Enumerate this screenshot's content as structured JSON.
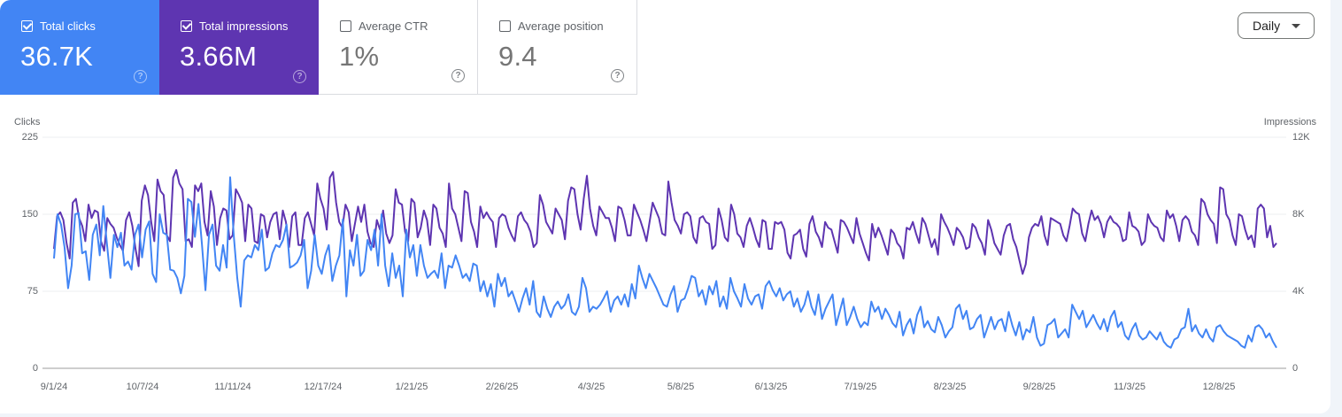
{
  "metrics": [
    {
      "label": "Total clicks",
      "value": "36.7K",
      "checked": true,
      "color": "#4285f4",
      "help_icon": "help-circle-icon"
    },
    {
      "label": "Total impressions",
      "value": "3.66M",
      "checked": true,
      "color": "#5e35b1",
      "help_icon": "help-circle-icon"
    },
    {
      "label": "Average CTR",
      "value": "1%",
      "checked": false,
      "help_icon": "help-circle-icon"
    },
    {
      "label": "Average position",
      "value": "9.4",
      "checked": false,
      "help_icon": "help-circle-icon"
    }
  ],
  "granularity": {
    "selected": "Daily",
    "icon": "caret-down-icon"
  },
  "chart_data": {
    "type": "line",
    "title": "",
    "xlabel": "",
    "ylabel": "Clicks",
    "ylabel_right": "Impressions",
    "ylim": [
      0,
      225
    ],
    "ylim_right": [
      0,
      12000
    ],
    "y_ticks": [
      "0",
      "75",
      "150",
      "225"
    ],
    "y_ticks_right": [
      "0",
      "4K",
      "8K",
      "12K"
    ],
    "grid": true,
    "legend": "metric cards above chart",
    "categories": [
      "9/1/24",
      "10/7/24",
      "11/11/24",
      "12/17/24",
      "1/21/25",
      "2/26/25",
      "4/3/25",
      "5/8/25",
      "6/13/25",
      "7/19/25",
      "8/23/25",
      "9/28/25",
      "11/3/25",
      "12/8/25"
    ],
    "series": [
      {
        "name": "Clicks",
        "axis": "left",
        "color": "#4285f4",
        "values": [
          107,
          150,
          140,
          118,
          78,
          100,
          150,
          151,
          112,
          114,
          86,
          130,
          140,
          110,
          158,
          122,
          88,
          130,
          118,
          132,
          100,
          104,
          96,
          130,
          140,
          108,
          135,
          143,
          92,
          84,
          150,
          132,
          130,
          96,
          95,
          88,
          73,
          90,
          165,
          162,
          128,
          160,
          120,
          76,
          130,
          140,
          100,
          95,
          120,
          98,
          186,
          130,
          88,
          60,
          105,
          110,
          108,
          120,
          115,
          135,
          95,
          98,
          112,
          120,
          118,
          125,
          140,
          98,
          100,
          103,
          110,
          125,
          78,
          95,
          130,
          100,
          92,
          110,
          120,
          85,
          100,
          110,
          145,
          70,
          115,
          100,
          130,
          90,
          95,
          125,
          115,
          135,
          100,
          150,
          100,
          80,
          112,
          88,
          100,
          70,
          135,
          108,
          120,
          90,
          120,
          100,
          88,
          92,
          95,
          88,
          112,
          78,
          100,
          98,
          110,
          100,
          88,
          92,
          85,
          102,
          100,
          75,
          85,
          70,
          82,
          60,
          92,
          80,
          88,
          70,
          75,
          65,
          55,
          68,
          78,
          62,
          85,
          55,
          50,
          70,
          58,
          50,
          60,
          65,
          58,
          62,
          72,
          55,
          52,
          60,
          88,
          78,
          55,
          60,
          58,
          62,
          68,
          75,
          55,
          66,
          70,
          62,
          72,
          60,
          82,
          68,
          100,
          88,
          78,
          92,
          85,
          78,
          70,
          62,
          60,
          72,
          80,
          55,
          66,
          68,
          78,
          90,
          88,
          70,
          76,
          62,
          80,
          72,
          85,
          60,
          70,
          58,
          88,
          75,
          68,
          60,
          82,
          68,
          62,
          70,
          72,
          58,
          80,
          85,
          76,
          70,
          78,
          66,
          72,
          75,
          60,
          68,
          55,
          62,
          75,
          60,
          52,
          72,
          48,
          58,
          65,
          72,
          42,
          55,
          68,
          42,
          50,
          60,
          48,
          40,
          45,
          42,
          65,
          55,
          60,
          48,
          58,
          52,
          44,
          40,
          55,
          32,
          42,
          48,
          34,
          52,
          60,
          40,
          46,
          38,
          35,
          50,
          42,
          30,
          36,
          40,
          58,
          62,
          48,
          56,
          38,
          40,
          48,
          52,
          30,
          40,
          50,
          38,
          46,
          48,
          36,
          55,
          42,
          32,
          45,
          28,
          38,
          35,
          50,
          30,
          22,
          24,
          42,
          44,
          48,
          30,
          34,
          38,
          30,
          62,
          55,
          48,
          56,
          40,
          46,
          52,
          44,
          38,
          48,
          36,
          50,
          56,
          40,
          45,
          32,
          28,
          38,
          44,
          32,
          28,
          30,
          36,
          32,
          28,
          35,
          26,
          22,
          20,
          28,
          30,
          38,
          40,
          58,
          36,
          42,
          34,
          30,
          38,
          30,
          26,
          40,
          42,
          36,
          32,
          30,
          28,
          26,
          22,
          20,
          32,
          26,
          40,
          42,
          38,
          30,
          34,
          26,
          20
        ]
      },
      {
        "name": "Impressions",
        "axis": "right",
        "color": "#5e35b1",
        "values": [
          6200,
          7900,
          8100,
          7700,
          6500,
          5700,
          8600,
          8800,
          7800,
          7400,
          6600,
          8500,
          7800,
          8200,
          8100,
          6600,
          6100,
          7800,
          7500,
          7300,
          6800,
          6400,
          6100,
          7700,
          8100,
          7400,
          6200,
          5300,
          8700,
          9500,
          9000,
          7600,
          6600,
          9800,
          9200,
          9000,
          6900,
          6600,
          9900,
          10300,
          9600,
          9300,
          6600,
          6700,
          6300,
          9500,
          9200,
          9600,
          7600,
          6900,
          9200,
          8400,
          6400,
          7800,
          8300,
          8200,
          6700,
          6900,
          9300,
          9000,
          8600,
          6600,
          8500,
          8300,
          6600,
          6500,
          8000,
          7900,
          6800,
          7600,
          8000,
          8100,
          6700,
          8200,
          7600,
          6300,
          7900,
          8100,
          6400,
          6400,
          7800,
          8100,
          7500,
          6900,
          9600,
          8800,
          8300,
          7200,
          9900,
          10200,
          8600,
          7600,
          7300,
          8500,
          8100,
          6600,
          7500,
          8400,
          7600,
          8500,
          7100,
          6500,
          6300,
          7700,
          7200,
          8200,
          7000,
          6500,
          6900,
          9300,
          8600,
          8500,
          7100,
          6600,
          8800,
          8600,
          6800,
          7300,
          8200,
          7700,
          6400,
          8500,
          8300,
          7300,
          7000,
          6300,
          9600,
          8300,
          8000,
          7300,
          6600,
          9200,
          9100,
          7600,
          7100,
          6300,
          8400,
          7800,
          8100,
          7800,
          7600,
          6300,
          7800,
          8000,
          7900,
          7300,
          6900,
          6600,
          7900,
          8100,
          7700,
          7500,
          7100,
          6300,
          6500,
          9000,
          8500,
          7600,
          7300,
          7000,
          8300,
          8000,
          7700,
          6700,
          8700,
          9400,
          9300,
          8000,
          7200,
          8800,
          10000,
          8300,
          7400,
          6900,
          8400,
          8100,
          7800,
          7800,
          7300,
          6600,
          8400,
          8300,
          7700,
          6900,
          6900,
          8500,
          8100,
          7700,
          7200,
          6600,
          7600,
          8600,
          8200,
          7800,
          7000,
          6900,
          9700,
          8600,
          7700,
          7400,
          7000,
          8000,
          8100,
          7900,
          6800,
          6500,
          7800,
          7900,
          7600,
          7500,
          6200,
          6400,
          8300,
          7700,
          6800,
          6600,
          8500,
          8000,
          7000,
          6800,
          6300,
          7400,
          7800,
          7300,
          6700,
          6300,
          7700,
          7600,
          6200,
          6200,
          7600,
          7500,
          7600,
          7200,
          6000,
          5700,
          6900,
          7000,
          7200,
          6200,
          5800,
          7500,
          7900,
          7100,
          6800,
          6300,
          7600,
          7300,
          7200,
          6600,
          6000,
          7700,
          7600,
          7300,
          6900,
          6500,
          7800,
          7000,
          6500,
          6000,
          5600,
          7500,
          6800,
          7300,
          6900,
          6400,
          5900,
          7200,
          7000,
          6500,
          6300,
          5700,
          7300,
          7200,
          7600,
          7000,
          6500,
          7800,
          7500,
          6900,
          6300,
          6700,
          5900,
          8000,
          7600,
          7300,
          6900,
          6400,
          7300,
          7100,
          6800,
          6200,
          6300,
          7500,
          7300,
          6800,
          6500,
          5900,
          7700,
          7200,
          6500,
          6200,
          5900,
          6900,
          7400,
          7500,
          6700,
          6300,
          5600,
          4900,
          5400,
          6800,
          7300,
          7500,
          7400,
          7900,
          6900,
          6400,
          7800,
          7700,
          7600,
          7500,
          6900,
          6600,
          7400,
          8300,
          8100,
          8000,
          7000,
          6600,
          7500,
          8200,
          7700,
          7900,
          7500,
          6800,
          7600,
          7900,
          7600,
          7500,
          7300,
          6600,
          6700,
          8100,
          7400,
          7300,
          7100,
          6400,
          6600,
          8000,
          7600,
          7400,
          7300,
          6800,
          6600,
          8200,
          7800,
          8000,
          7400,
          6600,
          7700,
          7900,
          7700,
          7100,
          6900,
          6400,
          8800,
          8600,
          8000,
          7700,
          7500,
          6500,
          9400,
          9300,
          8000,
          7700,
          6900,
          6400,
          8000,
          7900,
          7200,
          6700,
          6900,
          6300,
          8300,
          8500,
          8300,
          6800,
          7400,
          6300,
          6500
        ]
      }
    ]
  }
}
